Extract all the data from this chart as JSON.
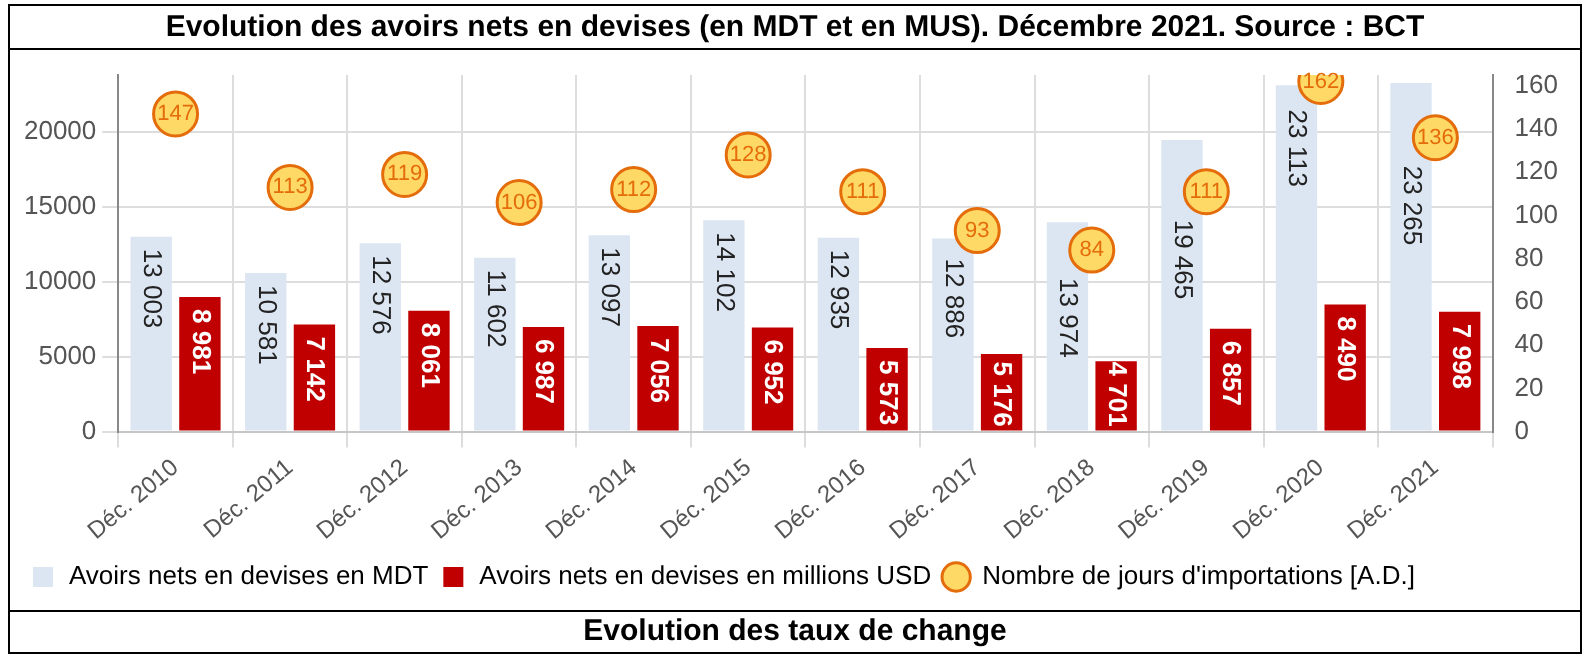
{
  "chart_data": {
    "type": "bar",
    "title": "Evolution des avoirs nets en devises (en MDT et en MUS). Décembre 2021. Source : BCT",
    "categories": [
      "Déc. 2010",
      "Déc. 2011",
      "Déc. 2012",
      "Déc. 2013",
      "Déc. 2014",
      "Déc. 2015",
      "Déc. 2016",
      "Déc. 2017",
      "Déc. 2018",
      "Déc. 2019",
      "Déc. 2020",
      "Déc. 2021"
    ],
    "series": [
      {
        "name": "Avoirs nets en devises en MDT",
        "color": "#dce6f2",
        "values": [
          13003,
          10581,
          12576,
          11602,
          13097,
          14102,
          12935,
          12886,
          13974,
          19465,
          23113,
          23265
        ],
        "value_labels": [
          "13 003",
          "10 581",
          "12 576",
          "11 602",
          "13 097",
          "14 102",
          "12 935",
          "12 886",
          "13 974",
          "19 465",
          "23 113",
          "23 265"
        ]
      },
      {
        "name": "Avoirs nets en devises en millions USD",
        "color": "#c00000",
        "values": [
          8981,
          7142,
          8061,
          6987,
          7056,
          6952,
          5573,
          5176,
          4701,
          6857,
          8490,
          7998
        ],
        "value_labels": [
          "8 981",
          "7 142",
          "8 061",
          "6 987",
          "7 056",
          "6 952",
          "5 573",
          "5 176",
          "4 701",
          "6 857",
          "8 490",
          "7 998"
        ]
      },
      {
        "name": "Nombre de jours d'importations [A.D.]",
        "type": "scatter",
        "axis": "y2",
        "marker": "circle",
        "color": "#ffd966",
        "values": [
          147,
          113,
          119,
          106,
          112,
          128,
          111,
          93,
          84,
          111,
          162,
          136
        ],
        "value_labels": [
          "147",
          "113",
          "119",
          "106",
          "112",
          "128",
          "111",
          "93",
          "84",
          "111",
          "162",
          "136"
        ]
      }
    ],
    "ylim": [
      0,
      23800
    ],
    "yticks": [
      0,
      5000,
      10000,
      15000,
      20000
    ],
    "y2lim": [
      0,
      165
    ],
    "y2ticks": [
      0,
      20,
      40,
      60,
      80,
      100,
      120,
      140,
      160
    ],
    "grid": true,
    "legend": "bottom",
    "annotations": [
      "Evolution des taux de change"
    ]
  }
}
